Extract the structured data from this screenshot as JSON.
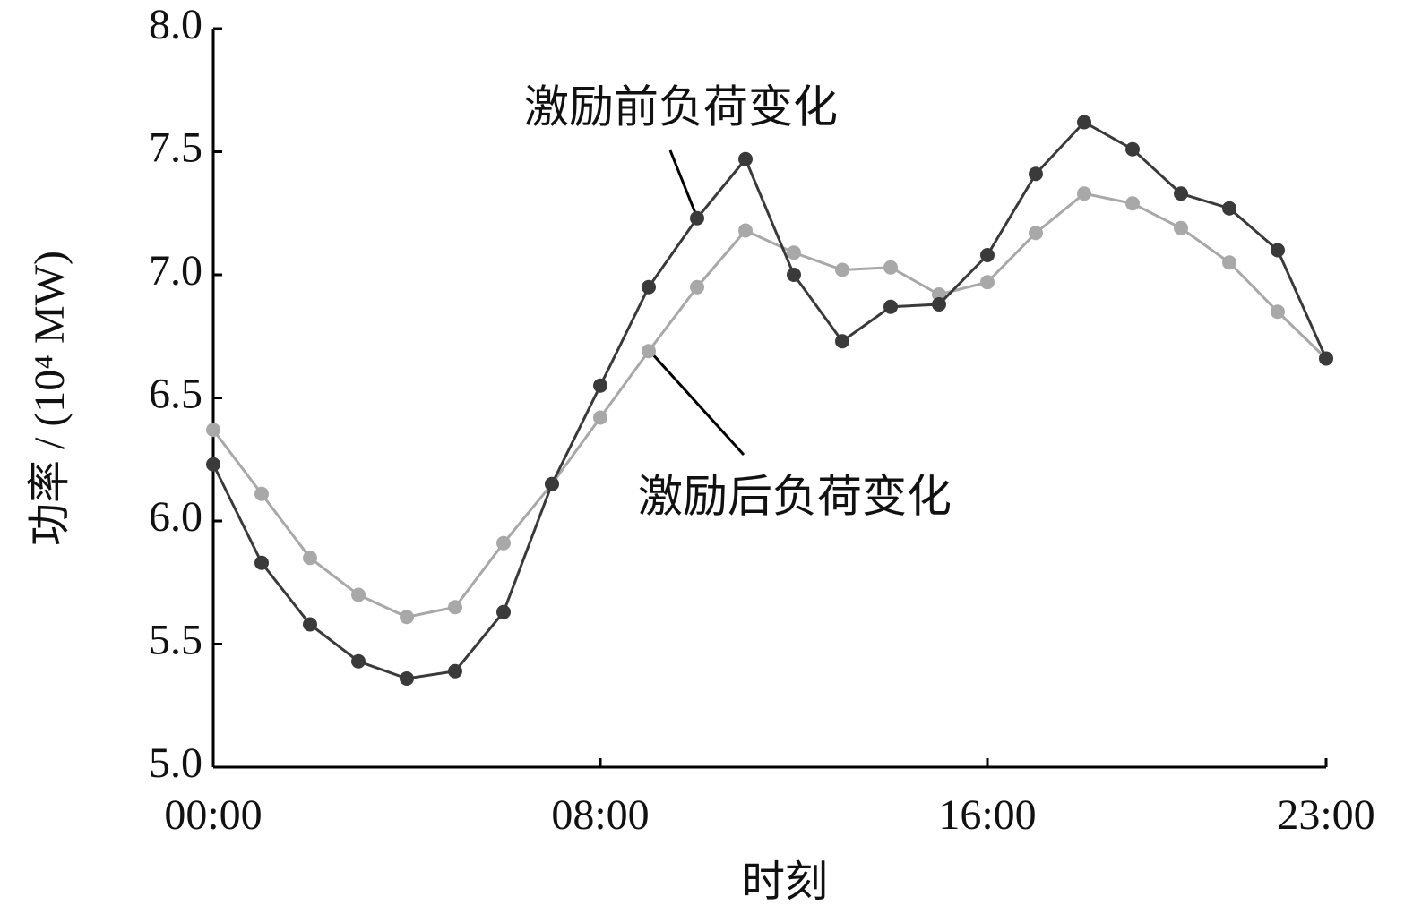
{
  "chart_data": {
    "type": "line",
    "x_label": "时刻",
    "y_label": "功率 / (10⁴ MW)",
    "x": [
      0,
      1,
      2,
      3,
      4,
      5,
      6,
      7,
      8,
      9,
      10,
      11,
      12,
      13,
      14,
      15,
      16,
      17,
      18,
      19,
      20,
      21,
      22,
      23
    ],
    "series": [
      {
        "name": "激励前负荷变化",
        "color": "#3a3a3a",
        "values": [
          6.23,
          5.83,
          5.58,
          5.43,
          5.36,
          5.39,
          5.63,
          6.15,
          6.55,
          6.95,
          7.23,
          7.47,
          7.0,
          6.73,
          6.87,
          6.88,
          7.08,
          7.41,
          7.62,
          7.51,
          7.33,
          7.27,
          7.1,
          6.66
        ]
      },
      {
        "name": "激励后负荷变化",
        "color": "#a8a8a8",
        "values": [
          6.37,
          6.11,
          5.85,
          5.7,
          5.61,
          5.65,
          5.91,
          6.15,
          6.42,
          6.69,
          6.95,
          7.18,
          7.09,
          7.02,
          7.03,
          6.92,
          6.97,
          7.17,
          7.33,
          7.29,
          7.19,
          7.05,
          6.85,
          6.66
        ]
      }
    ],
    "xlim": [
      0,
      23
    ],
    "xticks": [
      {
        "value": 0,
        "label": "00:00"
      },
      {
        "value": 8,
        "label": "08:00"
      },
      {
        "value": 16,
        "label": "16:00"
      },
      {
        "value": 23,
        "label": "23:00"
      }
    ],
    "ylim": [
      5,
      8
    ],
    "yticks": [
      {
        "value": 5,
        "label": "5.0"
      },
      5.5,
      {
        "value": 6,
        "label": "6.0"
      },
      6.5,
      {
        "value": 7,
        "label": "7.0"
      },
      7.5,
      {
        "value": 8,
        "label": "8.0"
      }
    ],
    "grid": false
  }
}
